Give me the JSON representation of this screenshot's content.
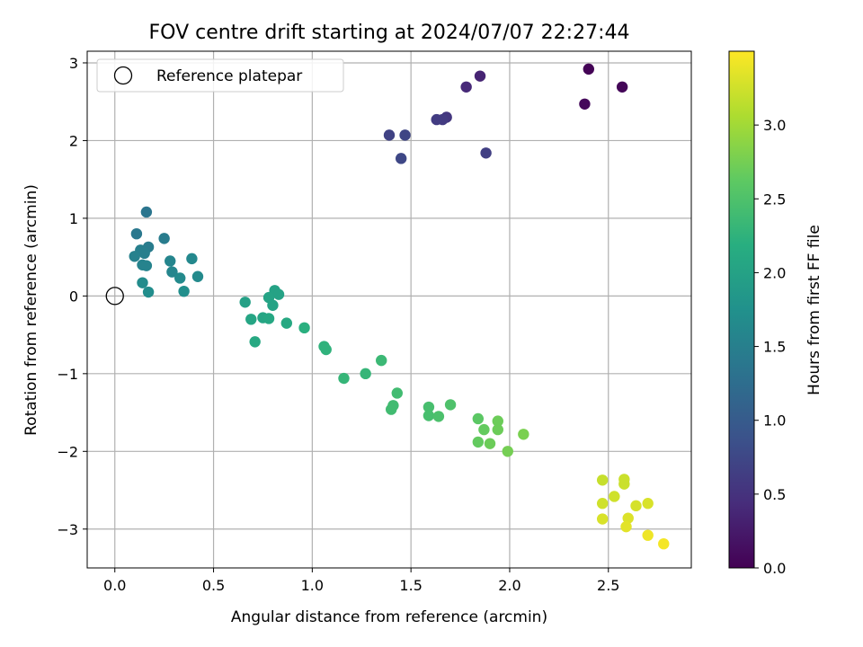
{
  "chart_data": {
    "type": "scatter",
    "title": "FOV centre drift starting at 2024/07/07 22:27:44",
    "xlabel": "Angular distance from reference (arcmin)",
    "ylabel": "Rotation from reference (arcmin)",
    "xlim": [
      -0.14,
      2.92
    ],
    "ylim": [
      -3.5,
      3.15
    ],
    "xticks": [
      0.0,
      0.5,
      1.0,
      1.5,
      2.0,
      2.5
    ],
    "xtick_labels": [
      "0.0",
      "0.5",
      "1.0",
      "1.5",
      "2.0",
      "2.5"
    ],
    "yticks": [
      -3,
      -2,
      -1,
      0,
      1,
      2,
      3
    ],
    "ytick_labels": [
      "−3",
      "−2",
      "−1",
      "0",
      "1",
      "2",
      "3"
    ],
    "grid": true,
    "legend": {
      "position": "top-left",
      "entries": [
        "Reference platepar"
      ]
    },
    "reference_point": {
      "x": 0.0,
      "y": 0.0
    },
    "colorbar": {
      "label": "Hours from first FF file",
      "colormap": "viridis",
      "range": [
        0.0,
        3.5
      ],
      "ticks": [
        0.0,
        0.5,
        1.0,
        1.5,
        2.0,
        2.5,
        3.0
      ],
      "tick_labels": [
        "0.0",
        "0.5",
        "1.0",
        "1.5",
        "2.0",
        "2.5",
        "3.0"
      ]
    },
    "points": [
      {
        "x": 2.4,
        "y": 2.92,
        "c": 0.02
      },
      {
        "x": 2.57,
        "y": 2.69,
        "c": 0.05
      },
      {
        "x": 2.38,
        "y": 2.47,
        "c": 0.08
      },
      {
        "x": 1.85,
        "y": 2.83,
        "c": 0.35
      },
      {
        "x": 1.78,
        "y": 2.69,
        "c": 0.4
      },
      {
        "x": 1.68,
        "y": 2.3,
        "c": 0.55
      },
      {
        "x": 1.66,
        "y": 2.27,
        "c": 0.6
      },
      {
        "x": 1.63,
        "y": 2.27,
        "c": 0.62
      },
      {
        "x": 1.88,
        "y": 1.84,
        "c": 0.65
      },
      {
        "x": 1.39,
        "y": 2.07,
        "c": 0.68
      },
      {
        "x": 1.47,
        "y": 2.07,
        "c": 0.72
      },
      {
        "x": 1.45,
        "y": 1.77,
        "c": 0.75
      },
      {
        "x": 0.16,
        "y": 1.08,
        "c": 1.35
      },
      {
        "x": 0.11,
        "y": 0.8,
        "c": 1.4
      },
      {
        "x": 0.25,
        "y": 0.74,
        "c": 1.45
      },
      {
        "x": 0.17,
        "y": 0.63,
        "c": 1.45
      },
      {
        "x": 0.13,
        "y": 0.59,
        "c": 1.5
      },
      {
        "x": 0.15,
        "y": 0.55,
        "c": 1.5
      },
      {
        "x": 0.1,
        "y": 0.51,
        "c": 1.52
      },
      {
        "x": 0.14,
        "y": 0.4,
        "c": 1.55
      },
      {
        "x": 0.16,
        "y": 0.39,
        "c": 1.55
      },
      {
        "x": 0.28,
        "y": 0.45,
        "c": 1.58
      },
      {
        "x": 0.29,
        "y": 0.31,
        "c": 1.6
      },
      {
        "x": 0.39,
        "y": 0.48,
        "c": 1.62
      },
      {
        "x": 0.42,
        "y": 0.25,
        "c": 1.65
      },
      {
        "x": 0.33,
        "y": 0.23,
        "c": 1.65
      },
      {
        "x": 0.14,
        "y": 0.17,
        "c": 1.68
      },
      {
        "x": 0.17,
        "y": 0.05,
        "c": 1.7
      },
      {
        "x": 0.35,
        "y": 0.06,
        "c": 1.72
      },
      {
        "x": 0.66,
        "y": -0.08,
        "c": 1.98
      },
      {
        "x": 0.81,
        "y": 0.07,
        "c": 2.0
      },
      {
        "x": 0.83,
        "y": 0.02,
        "c": 2.0
      },
      {
        "x": 0.78,
        "y": -0.02,
        "c": 2.02
      },
      {
        "x": 0.8,
        "y": -0.12,
        "c": 2.02
      },
      {
        "x": 0.69,
        "y": -0.3,
        "c": 2.05
      },
      {
        "x": 0.75,
        "y": -0.28,
        "c": 2.05
      },
      {
        "x": 0.78,
        "y": -0.29,
        "c": 2.08
      },
      {
        "x": 0.87,
        "y": -0.35,
        "c": 2.1
      },
      {
        "x": 0.71,
        "y": -0.59,
        "c": 2.1
      },
      {
        "x": 0.96,
        "y": -0.41,
        "c": 2.2
      },
      {
        "x": 1.06,
        "y": -0.65,
        "c": 2.25
      },
      {
        "x": 1.07,
        "y": -0.69,
        "c": 2.25
      },
      {
        "x": 1.16,
        "y": -1.06,
        "c": 2.3
      },
      {
        "x": 1.27,
        "y": -1.0,
        "c": 2.3
      },
      {
        "x": 1.35,
        "y": -0.83,
        "c": 2.35
      },
      {
        "x": 1.43,
        "y": -1.25,
        "c": 2.4
      },
      {
        "x": 1.41,
        "y": -1.41,
        "c": 2.4
      },
      {
        "x": 1.4,
        "y": -1.46,
        "c": 2.4
      },
      {
        "x": 1.59,
        "y": -1.43,
        "c": 2.45
      },
      {
        "x": 1.59,
        "y": -1.54,
        "c": 2.45
      },
      {
        "x": 1.64,
        "y": -1.55,
        "c": 2.48
      },
      {
        "x": 1.7,
        "y": -1.4,
        "c": 2.5
      },
      {
        "x": 1.84,
        "y": -1.58,
        "c": 2.6
      },
      {
        "x": 1.87,
        "y": -1.72,
        "c": 2.65
      },
      {
        "x": 1.94,
        "y": -1.61,
        "c": 2.7
      },
      {
        "x": 1.94,
        "y": -1.72,
        "c": 2.7
      },
      {
        "x": 1.84,
        "y": -1.88,
        "c": 2.65
      },
      {
        "x": 1.9,
        "y": -1.9,
        "c": 2.7
      },
      {
        "x": 1.99,
        "y": -2.0,
        "c": 2.75
      },
      {
        "x": 2.07,
        "y": -1.78,
        "c": 2.78
      },
      {
        "x": 2.47,
        "y": -2.37,
        "c": 3.2
      },
      {
        "x": 2.58,
        "y": -2.36,
        "c": 3.22
      },
      {
        "x": 2.58,
        "y": -2.42,
        "c": 3.22
      },
      {
        "x": 2.47,
        "y": -2.67,
        "c": 3.25
      },
      {
        "x": 2.53,
        "y": -2.58,
        "c": 3.25
      },
      {
        "x": 2.64,
        "y": -2.7,
        "c": 3.28
      },
      {
        "x": 2.7,
        "y": -2.67,
        "c": 3.3
      },
      {
        "x": 2.47,
        "y": -2.87,
        "c": 3.3
      },
      {
        "x": 2.6,
        "y": -2.86,
        "c": 3.32
      },
      {
        "x": 2.59,
        "y": -2.97,
        "c": 3.35
      },
      {
        "x": 2.7,
        "y": -3.08,
        "c": 3.42
      },
      {
        "x": 2.78,
        "y": -3.19,
        "c": 3.45
      }
    ]
  }
}
